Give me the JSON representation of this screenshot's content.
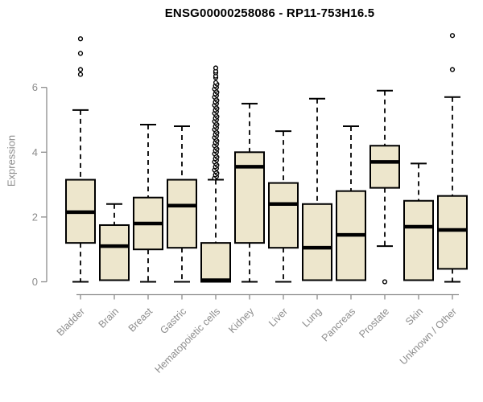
{
  "chart_data": {
    "type": "box",
    "title": "ENSG00000258086 - RP11-753H16.5",
    "ylabel": "Expression",
    "xlabel": "",
    "yticks": [
      0,
      2,
      4,
      6
    ],
    "ytick_labels": [
      "0",
      "2",
      "4",
      "6"
    ],
    "ylim": [
      0,
      7.8
    ],
    "grid": "off",
    "legend": "none",
    "categories": [
      "Bladder",
      "Brain",
      "Breast",
      "Gastric",
      "Hematopoietic cells",
      "Kidney",
      "Liver",
      "Lung",
      "Pancreas",
      "Prostate",
      "Skin",
      "Unknown / Other"
    ],
    "boxes": [
      {
        "category": "Bladder",
        "whisker_low": 0,
        "q1": 1.2,
        "median": 2.15,
        "q3": 3.15,
        "whisker_high": 5.3,
        "outliers": [
          6.4,
          6.55,
          7.05,
          7.5
        ],
        "outlier_band": null
      },
      {
        "category": "Brain",
        "whisker_low": 0.05,
        "q1": 0.05,
        "median": 1.1,
        "q3": 1.75,
        "whisker_high": 2.4,
        "outliers": [],
        "outlier_band": null
      },
      {
        "category": "Breast",
        "whisker_low": 0,
        "q1": 1.0,
        "median": 1.8,
        "q3": 2.6,
        "whisker_high": 4.85,
        "outliers": [],
        "outlier_band": null
      },
      {
        "category": "Gastric",
        "whisker_low": 0,
        "q1": 1.05,
        "median": 2.35,
        "q3": 3.15,
        "whisker_high": 4.8,
        "outliers": [],
        "outlier_band": null
      },
      {
        "category": "Hematopoietic cells",
        "whisker_low": 0,
        "q1": 0,
        "median": 0.05,
        "q3": 1.2,
        "whisker_high": 3.15,
        "outliers": [
          6.3,
          6.35,
          6.45,
          6.5,
          6.6
        ],
        "outlier_band": [
          3.2,
          6.15
        ]
      },
      {
        "category": "Kidney",
        "whisker_low": 0,
        "q1": 1.2,
        "median": 3.55,
        "q3": 4.0,
        "whisker_high": 5.5,
        "outliers": [],
        "outlier_band": null
      },
      {
        "category": "Liver",
        "whisker_low": 0,
        "q1": 1.05,
        "median": 2.4,
        "q3": 3.05,
        "whisker_high": 4.65,
        "outliers": [],
        "outlier_band": null
      },
      {
        "category": "Lung",
        "whisker_low": 0.05,
        "q1": 0.05,
        "median": 1.05,
        "q3": 2.4,
        "whisker_high": 5.65,
        "outliers": [],
        "outlier_band": null
      },
      {
        "category": "Pancreas",
        "whisker_low": 0.05,
        "q1": 0.05,
        "median": 1.45,
        "q3": 2.8,
        "whisker_high": 4.8,
        "outliers": [],
        "outlier_band": null
      },
      {
        "category": "Prostate",
        "whisker_low": 1.1,
        "q1": 2.9,
        "median": 3.7,
        "q3": 4.2,
        "whisker_high": 5.9,
        "outliers": [
          0
        ],
        "outlier_band": null
      },
      {
        "category": "Skin",
        "whisker_low": 0.05,
        "q1": 0.05,
        "median": 1.7,
        "q3": 2.5,
        "whisker_high": 3.65,
        "outliers": [],
        "outlier_band": null
      },
      {
        "category": "Unknown / Other",
        "whisker_low": 0,
        "q1": 0.4,
        "median": 1.6,
        "q3": 2.65,
        "whisker_high": 5.7,
        "outliers": [
          6.55,
          7.6
        ],
        "outlier_band": null
      }
    ],
    "colors": {
      "box_fill": "#ede6cc",
      "box_border": "#000000",
      "median": "#000000",
      "whisker": "#000000",
      "axis": "#8c8c8c",
      "tick_label": "#8c8c8c",
      "title": "#000000",
      "background": "#ffffff"
    }
  }
}
